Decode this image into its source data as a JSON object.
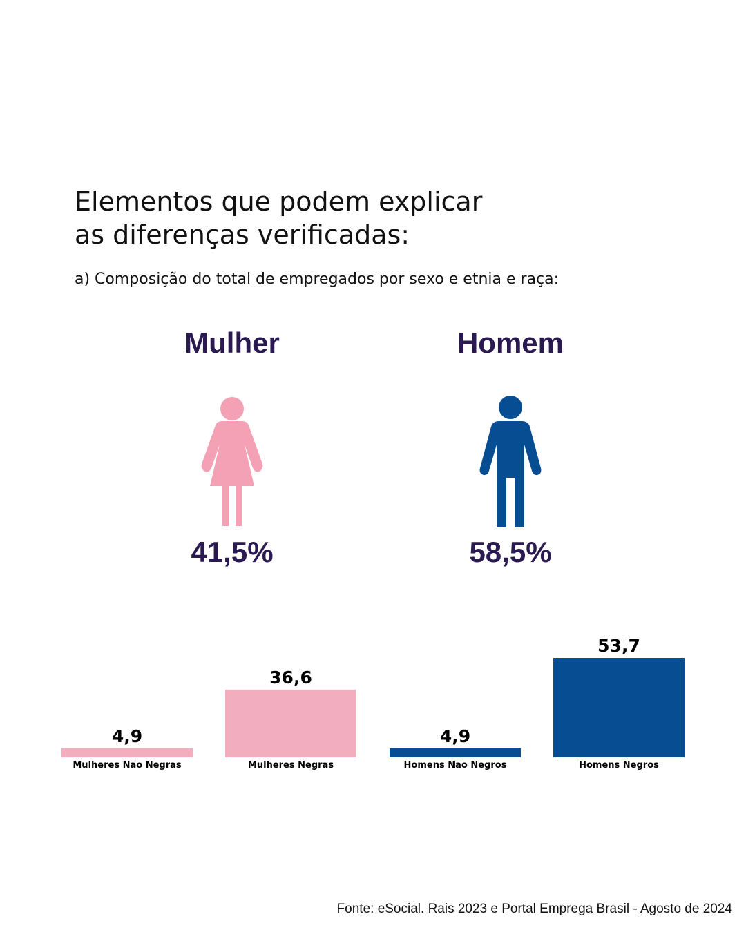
{
  "heading": {
    "line1": "Elementos que podem explicar",
    "line2": "as diferenças verificadas:"
  },
  "subheading": "a) Composição do total de empregados por sexo e etnia e raça:",
  "genders": {
    "female": {
      "label": "Mulher",
      "percent": "41,5%",
      "icon": "female-person-icon",
      "color": "#f4a1b5"
    },
    "male": {
      "label": "Homem",
      "percent": "58,5%",
      "icon": "male-person-icon",
      "color": "#074d92"
    }
  },
  "chart_data": {
    "type": "bar",
    "categories": [
      "Mulheres Não Negras",
      "Mulheres Negras",
      "Homens Não Negros",
      "Homens Negros"
    ],
    "values": [
      4.9,
      36.6,
      4.9,
      53.7
    ],
    "value_labels": [
      "4,9",
      "36,6",
      "4,9",
      "53,7"
    ],
    "colors": [
      "#f2aebe",
      "#f2aebe",
      "#074d92",
      "#074d92"
    ],
    "title": "",
    "xlabel": "",
    "ylabel": "",
    "ylim": [
      0,
      53.7
    ],
    "grid": false,
    "legend": "none"
  },
  "source": "Fonte: eSocial. Rais 2023 e Portal Emprega Brasil - Agosto de 2024"
}
